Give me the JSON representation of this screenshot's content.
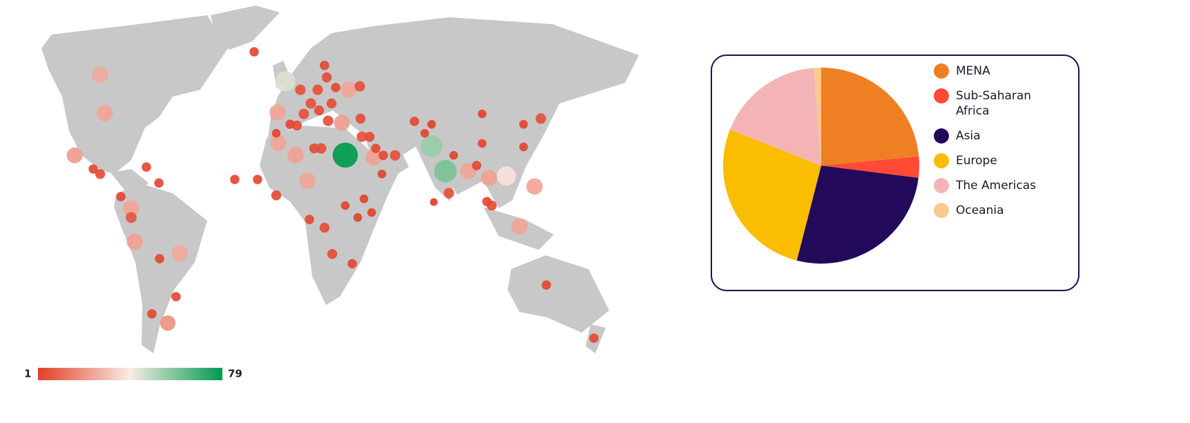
{
  "chart_data": [
    {
      "type": "map",
      "color_scale": {
        "min": 1,
        "max": 79,
        "colors": [
          "#e23f29",
          "#f9ece4",
          "#009a4e"
        ]
      },
      "points": [
        [
          29.8,
          27,
          79
        ],
        [
          80.2,
          30.6,
          55
        ],
        [
          88.3,
          20.6,
          60
        ],
        [
          -5.2,
          56.7,
          45
        ],
        [
          123.8,
          18.6,
          38
        ],
        [
          -113.3,
          59.4,
          25
        ],
        [
          -110.5,
          43.9,
          24
        ],
        [
          -128.2,
          26.9,
          22
        ],
        [
          -95.2,
          5.6,
          24
        ],
        [
          -93.1,
          -7.8,
          23
        ],
        [
          -66.9,
          -12.5,
          25
        ],
        [
          -73.8,
          -40.6,
          20
        ],
        [
          -9.7,
          44.2,
          24
        ],
        [
          -9.3,
          31.9,
          24
        ],
        [
          0.8,
          27,
          23
        ],
        [
          7.7,
          16.7,
          24
        ],
        [
          27.8,
          40,
          22
        ],
        [
          31.9,
          53.3,
          24
        ],
        [
          46.4,
          26.1,
          23
        ],
        [
          101.6,
          20.6,
          24
        ],
        [
          113.7,
          17.8,
          23
        ],
        [
          140.3,
          14.4,
          24
        ],
        [
          131.5,
          -1.7,
          24
        ],
        [
          -23.4,
          68.6,
          3
        ],
        [
          -86.3,
          22.2,
          3
        ],
        [
          -79,
          15.8,
          3
        ],
        [
          -117.3,
          21.4,
          3
        ],
        [
          -113.3,
          19.4,
          4
        ],
        [
          -101.2,
          10.3,
          3
        ],
        [
          -95.2,
          1.9,
          6
        ],
        [
          -78.6,
          -14.7,
          3
        ],
        [
          -69,
          -30,
          3
        ],
        [
          -83.1,
          -36.9,
          3
        ],
        [
          -34.7,
          17.2,
          3
        ],
        [
          -21.4,
          17.2,
          3
        ],
        [
          -10.5,
          10.8,
          4
        ],
        [
          8.9,
          1.1,
          3
        ],
        [
          17.7,
          -2.2,
          4
        ],
        [
          22.2,
          -12.8,
          4
        ],
        [
          33.9,
          -16.7,
          3
        ],
        [
          29.8,
          6.7,
          2
        ],
        [
          40.7,
          9.4,
          2
        ],
        [
          37.1,
          1.9,
          2
        ],
        [
          45.2,
          3.9,
          2
        ],
        [
          51.2,
          19.4,
          2
        ],
        [
          3.6,
          53.3,
          5
        ],
        [
          13.7,
          53.3,
          5
        ],
        [
          19,
          58.3,
          4
        ],
        [
          17.7,
          63.1,
          3
        ],
        [
          24.2,
          54.2,
          3
        ],
        [
          38.3,
          54.7,
          5
        ],
        [
          9.7,
          47.8,
          5
        ],
        [
          5.6,
          43.6,
          5
        ],
        [
          14.5,
          45,
          4
        ],
        [
          21.8,
          47.8,
          4
        ],
        [
          19.8,
          40.8,
          5
        ],
        [
          1.6,
          38.9,
          4
        ],
        [
          -2.4,
          39.4,
          3
        ],
        [
          11.7,
          29.7,
          4
        ],
        [
          15.7,
          29.7,
          5
        ],
        [
          38.7,
          41.7,
          4
        ],
        [
          39.5,
          34.4,
          5
        ],
        [
          44,
          34.4,
          4
        ],
        [
          47.6,
          29.7,
          3
        ],
        [
          58.9,
          26.9,
          5
        ],
        [
          70.2,
          40.6,
          3
        ],
        [
          80.2,
          39.4,
          2
        ],
        [
          109.7,
          43.6,
          2
        ],
        [
          109.7,
          31.7,
          2
        ],
        [
          133.9,
          39.4,
          2
        ],
        [
          144,
          41.7,
          5
        ],
        [
          133.9,
          30.3,
          2
        ],
        [
          106.5,
          22.8,
          3
        ],
        [
          115.3,
          6.7,
          4
        ],
        [
          90.3,
          11.7,
          5
        ],
        [
          81.5,
          8.1,
          1
        ],
        [
          147.2,
          -25.3,
          3
        ],
        [
          175,
          -46.7,
          3
        ],
        [
          76.2,
          35.8,
          2
        ],
        [
          93.1,
          26.9,
          2
        ],
        [
          112.5,
          8.3,
          3
        ],
        [
          -10.5,
          35.8,
          2
        ],
        [
          52,
          26.9,
          3
        ]
      ]
    },
    {
      "type": "pie",
      "categories": [
        "MENA",
        "Sub-Saharan Africa",
        "Asia",
        "Europe",
        "The Americas",
        "Oceania"
      ],
      "values": [
        23.5,
        3.5,
        27,
        27,
        17.8,
        1.2
      ],
      "colors": [
        "#ee7f22",
        "#ff4a36",
        "#23095a",
        "#fbbd00",
        "#f4b4b6",
        "#f9c98f"
      ]
    }
  ]
}
